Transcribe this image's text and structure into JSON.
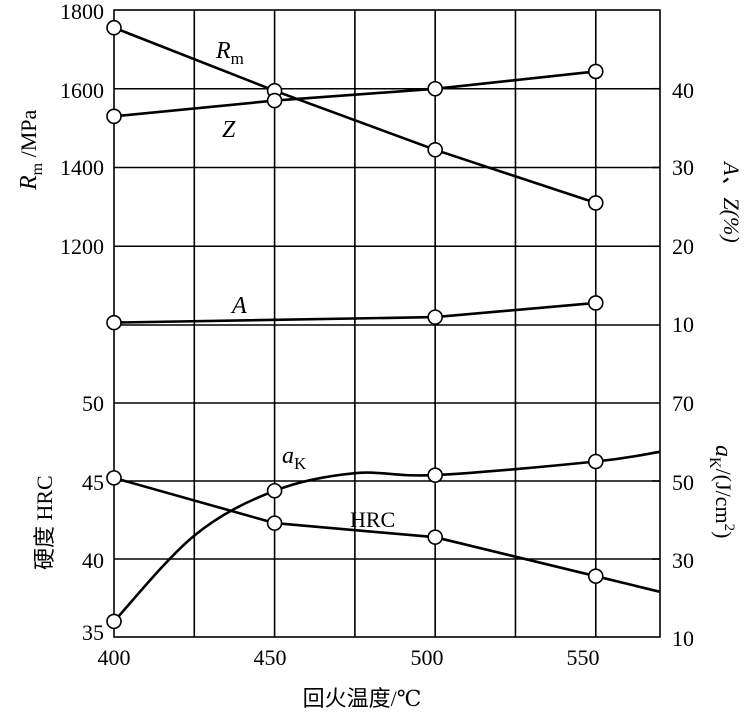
{
  "chart_data": {
    "type": "line",
    "xlabel": "回火温度/℃",
    "x_ticks": [
      "400",
      "450",
      "500",
      "550"
    ],
    "xlim": [
      400,
      570
    ],
    "upper_panel": {
      "left_axis": {
        "label_main": "R",
        "label_sub": "m",
        "label_unit": " /MPa",
        "ticks": [
          "1800",
          "1600",
          "1400",
          "1200"
        ],
        "ylim": [
          1000,
          1800
        ]
      },
      "right_axis": {
        "label": "A、Z(%)",
        "ticks": [
          "40",
          "30",
          "20",
          "10"
        ],
        "ylim": [
          10,
          50
        ]
      },
      "series": [
        {
          "name": "R",
          "name_sub": "m",
          "axis": "left",
          "x": [
            400,
            450,
            500,
            550
          ],
          "values": [
            1755,
            1595,
            1445,
            1310
          ]
        },
        {
          "name": "Z",
          "name_sub": "",
          "axis": "right",
          "x": [
            400,
            450,
            500,
            550
          ],
          "values": [
            36.5,
            38.5,
            40,
            42.2
          ]
        },
        {
          "name": "A",
          "name_sub": "",
          "axis": "right",
          "x": [
            400,
            500,
            550
          ],
          "values": [
            10.3,
            11,
            12.8
          ]
        }
      ]
    },
    "lower_panel": {
      "left_axis": {
        "label": "硬度  HRC",
        "ticks": [
          "50",
          "45",
          "40",
          "35"
        ],
        "ylim": [
          35,
          50
        ]
      },
      "right_axis": {
        "label_main": "a",
        "label_sub": "K",
        "label_unit": "/(J/cm",
        "label_sup": "2",
        "label_end": ")",
        "ticks": [
          "70",
          "50",
          "30",
          "10"
        ],
        "ylim": [
          10,
          70
        ]
      },
      "series": [
        {
          "name": "a",
          "name_sub": "K",
          "axis": "right",
          "x": [
            400,
            450,
            500,
            550
          ],
          "values": [
            14,
            47.5,
            51.5,
            55
          ]
        },
        {
          "name": "HRC",
          "name_sub": "",
          "axis": "left",
          "x": [
            400,
            450,
            500,
            550
          ],
          "values": [
            45.2,
            42.3,
            41.4,
            38.9
          ]
        }
      ]
    },
    "grid": true
  }
}
